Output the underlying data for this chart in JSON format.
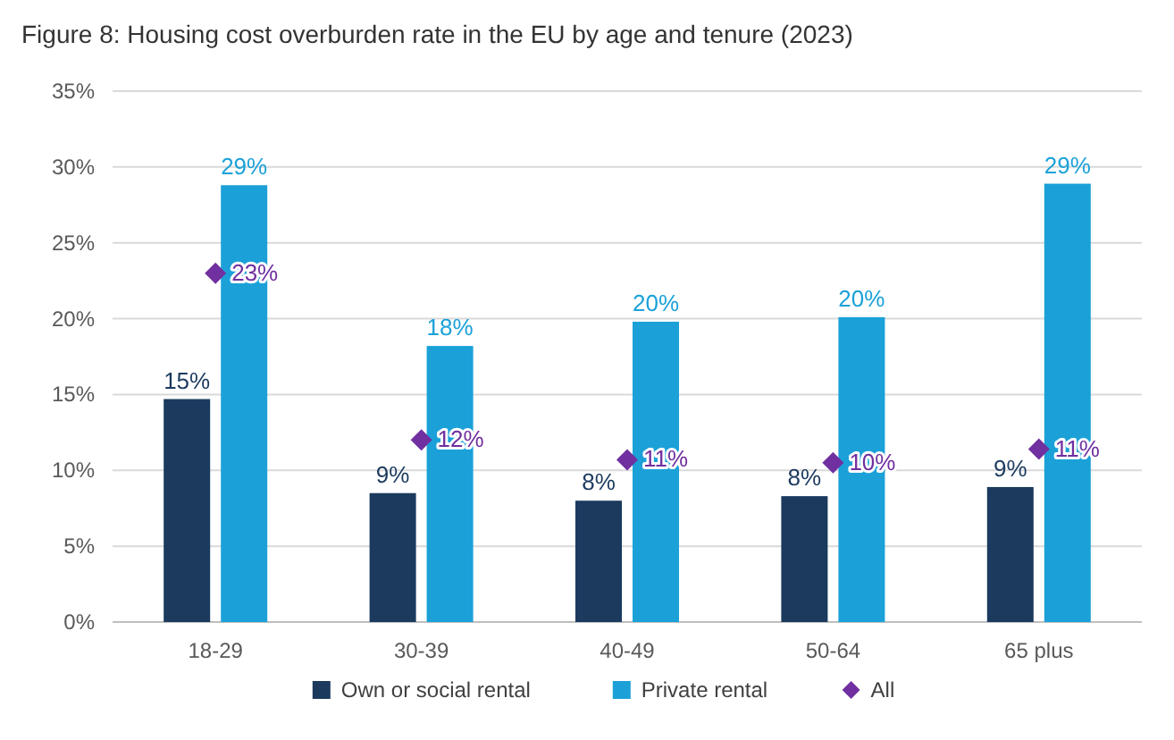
{
  "chart_data": {
    "type": "bar",
    "title": "Figure 8: Housing cost overburden rate in the EU by age and tenure (2023)",
    "categories": [
      "18-29",
      "30-39",
      "40-49",
      "50-64",
      "65 plus"
    ],
    "series": [
      {
        "name": "Own or social rental",
        "color": "#1b3a5e",
        "values": [
          14.7,
          8.5,
          8.0,
          8.3,
          8.9
        ],
        "value_labels": [
          "15%",
          "9%",
          "8%",
          "8%",
          "9%"
        ]
      },
      {
        "name": "Private rental",
        "color": "#1ba1d8",
        "values": [
          28.8,
          18.2,
          19.8,
          20.1,
          28.9
        ],
        "value_labels": [
          "29%",
          "18%",
          "20%",
          "20%",
          "29%"
        ]
      },
      {
        "name": "All",
        "type": "scatter",
        "marker": "diamond",
        "color": "#7030a0",
        "x": [
          "18-29",
          "30-39",
          "40-49",
          "50-64",
          "65 plus"
        ],
        "values": [
          23.0,
          12.0,
          10.7,
          10.5,
          11.4
        ],
        "value_labels": [
          "23%",
          "12%",
          "11%",
          "10%",
          "11%"
        ]
      }
    ],
    "ylim": [
      0,
      35
    ],
    "yticks": [
      {
        "value": 0,
        "label": "0%"
      },
      {
        "value": 5,
        "label": "5%"
      },
      {
        "value": 10,
        "label": "10%"
      },
      {
        "value": 15,
        "label": "15%"
      },
      {
        "value": 20,
        "label": "20%"
      },
      {
        "value": 25,
        "label": "25%"
      },
      {
        "value": 30,
        "label": "30%"
      },
      {
        "value": 35,
        "label": "35%"
      }
    ],
    "grid": "y",
    "legend": "bottom"
  }
}
